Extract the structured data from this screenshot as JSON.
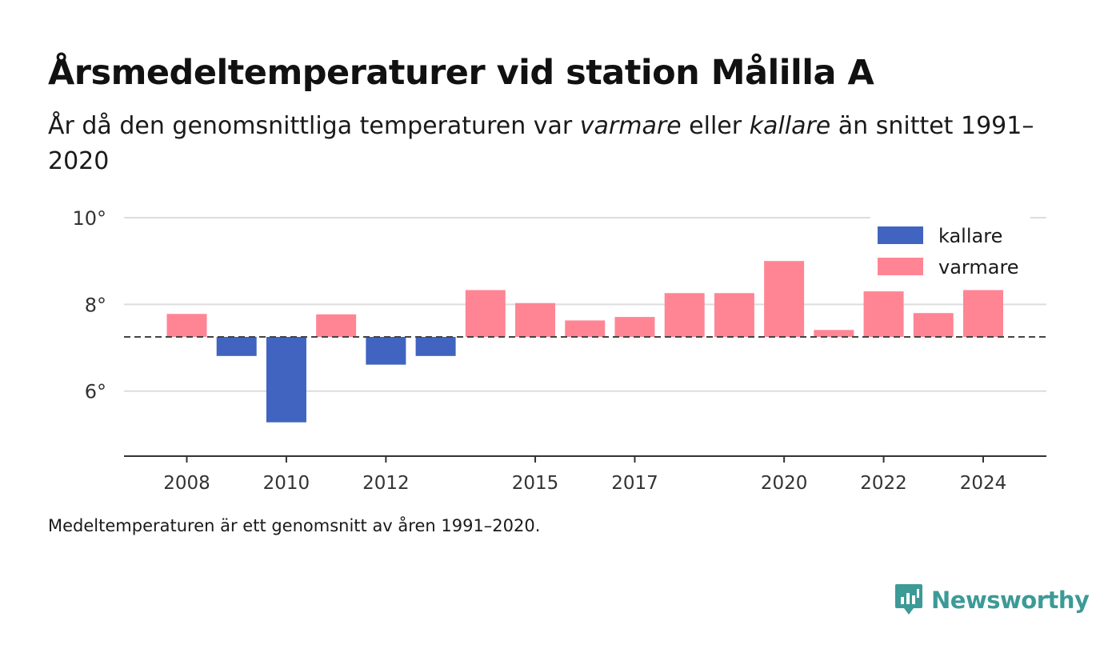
{
  "title": "Årsmedeltemperaturer vid station Målilla A",
  "subtitle": {
    "prefix": "År då den genomsnittliga temperaturen var ",
    "warm_word": "varmare",
    "middle": " eller ",
    "cold_word": "kallare",
    "suffix": " än snittet 1991–2020"
  },
  "footnote": "Medeltemperaturen är ett genomsnitt av åren 1991–2020.",
  "brand": {
    "name": "Newsworthy",
    "icon": "newsworthy-logo-icon",
    "color": "#3c9a97"
  },
  "chart_data": {
    "type": "bar",
    "baseline": 7.25,
    "ylim": [
      4.5,
      10
    ],
    "yticks": [
      6,
      8,
      10
    ],
    "ytick_labels": [
      "6°",
      "8°",
      "10°"
    ],
    "xticks": [
      2008,
      2010,
      2012,
      2015,
      2017,
      2020,
      2022,
      2024
    ],
    "grid": true,
    "legend_position": "top-right",
    "colors": {
      "kallare": "#4064bf",
      "varmare": "#ff8595",
      "baseline": "#444444",
      "grid": "#dddddd",
      "axis": "#333333"
    },
    "series": [
      {
        "name": "kallare",
        "key": "kallare"
      },
      {
        "name": "varmare",
        "key": "varmare"
      }
    ],
    "data": [
      {
        "year": 2008,
        "value": 7.78
      },
      {
        "year": 2009,
        "value": 6.81
      },
      {
        "year": 2010,
        "value": 5.28
      },
      {
        "year": 2011,
        "value": 7.77
      },
      {
        "year": 2012,
        "value": 6.61
      },
      {
        "year": 2013,
        "value": 6.81
      },
      {
        "year": 2014,
        "value": 8.33
      },
      {
        "year": 2015,
        "value": 8.03
      },
      {
        "year": 2016,
        "value": 7.63
      },
      {
        "year": 2017,
        "value": 7.71
      },
      {
        "year": 2018,
        "value": 8.26
      },
      {
        "year": 2019,
        "value": 8.26
      },
      {
        "year": 2020,
        "value": 9.0
      },
      {
        "year": 2021,
        "value": 7.41
      },
      {
        "year": 2022,
        "value": 8.3
      },
      {
        "year": 2023,
        "value": 7.8
      },
      {
        "year": 2024,
        "value": 8.33
      }
    ]
  }
}
